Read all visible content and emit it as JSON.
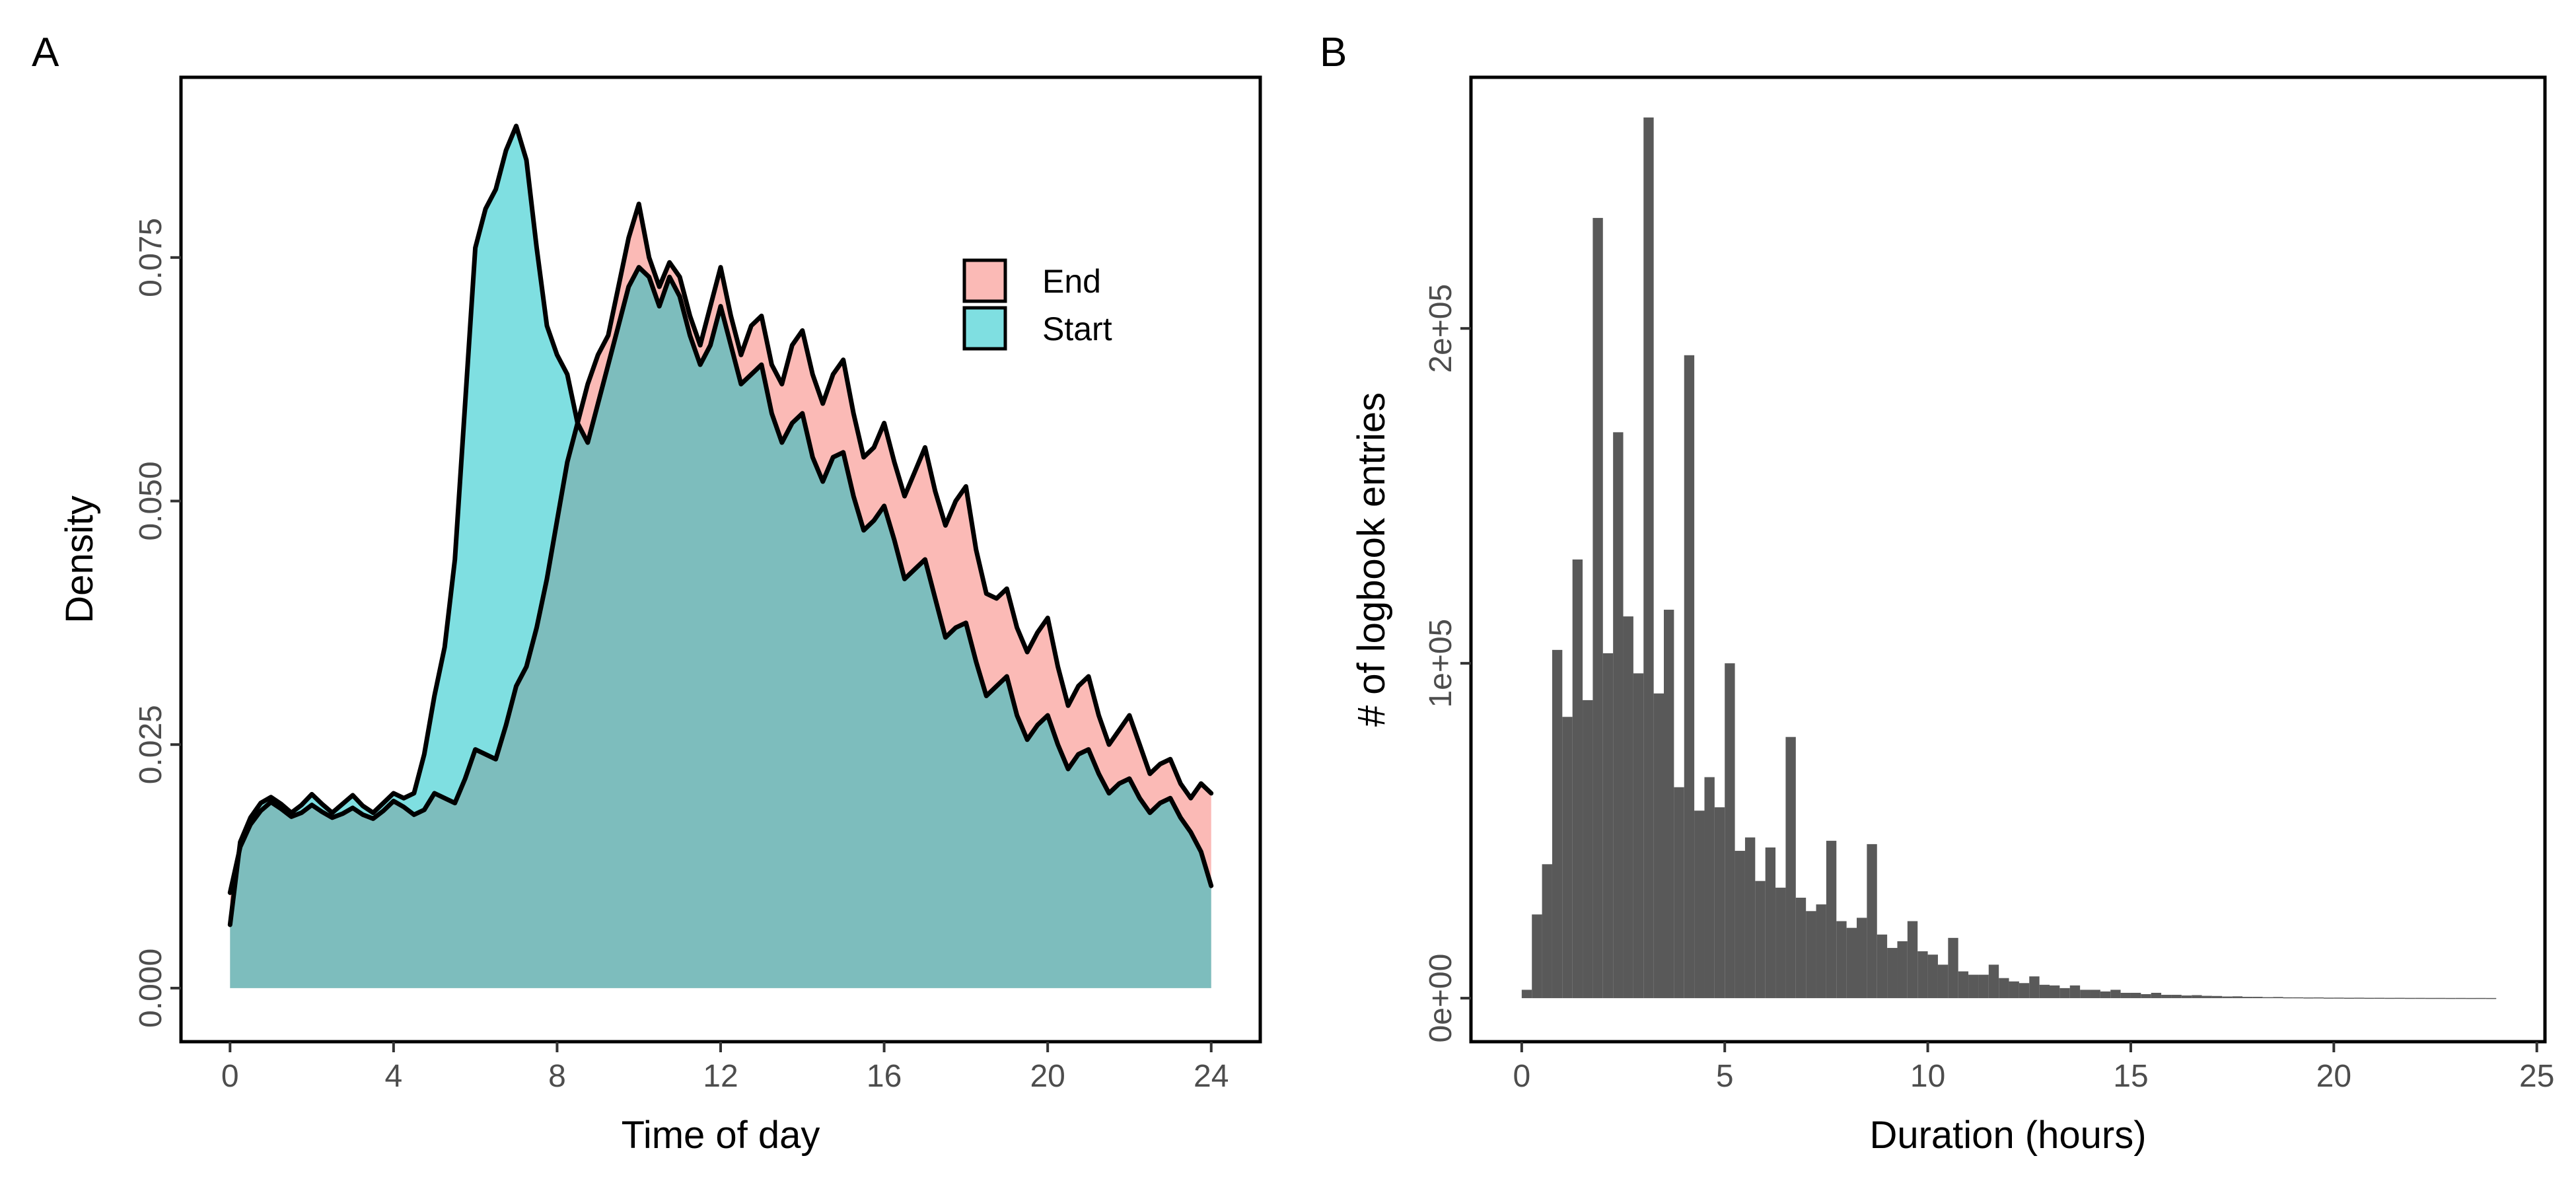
{
  "colors": {
    "end_fill": "#F8766D",
    "start_fill": "#00BFC4",
    "bar_fill": "#595959",
    "outline": "#000000"
  },
  "chart_data": [
    {
      "panel": "A",
      "type": "area",
      "xlabel": "Time of day",
      "ylabel": "Density",
      "xlim": [
        -1.2,
        25.2
      ],
      "ylim": [
        -0.0055,
        0.0935
      ],
      "x_ticks": [
        0,
        4,
        8,
        12,
        16,
        20,
        24
      ],
      "x_tick_labels": [
        "0",
        "4",
        "8",
        "12",
        "16",
        "20",
        "24"
      ],
      "y_ticks": [
        0.0,
        0.025,
        0.05,
        0.075
      ],
      "y_tick_labels": [
        "0.000",
        "0.025",
        "0.050",
        "0.075"
      ],
      "legend": {
        "placement": "top-right",
        "entries": [
          "End",
          "Start"
        ]
      },
      "series": [
        {
          "name": "End",
          "fill_alpha": 0.5,
          "x": [
            0,
            0.25,
            0.5,
            0.75,
            1,
            1.25,
            1.5,
            1.75,
            2,
            2.25,
            2.5,
            2.75,
            3,
            3.25,
            3.5,
            3.75,
            4,
            4.25,
            4.5,
            4.75,
            5,
            5.25,
            5.5,
            5.75,
            6,
            6.25,
            6.5,
            6.75,
            7,
            7.25,
            7.5,
            7.75,
            8,
            8.25,
            8.5,
            8.75,
            9,
            9.25,
            9.5,
            9.75,
            10,
            10.25,
            10.5,
            10.75,
            11,
            11.25,
            11.5,
            11.75,
            12,
            12.25,
            12.5,
            12.75,
            13,
            13.25,
            13.5,
            13.75,
            14,
            14.25,
            14.5,
            14.75,
            15,
            15.25,
            15.5,
            15.75,
            16,
            16.25,
            16.5,
            16.75,
            17,
            17.25,
            17.5,
            17.75,
            18,
            18.25,
            18.5,
            18.75,
            19,
            19.25,
            19.5,
            19.75,
            20,
            20.25,
            20.5,
            20.75,
            21,
            21.25,
            21.5,
            21.75,
            22,
            22.25,
            22.5,
            22.75,
            23,
            23.25,
            23.5,
            23.75,
            24
          ],
          "y": [
            0.0098,
            0.0145,
            0.0168,
            0.0182,
            0.0191,
            0.0184,
            0.0176,
            0.018,
            0.0188,
            0.0181,
            0.0175,
            0.0179,
            0.0185,
            0.0178,
            0.0174,
            0.0182,
            0.0192,
            0.0186,
            0.0178,
            0.0183,
            0.02,
            0.0195,
            0.019,
            0.0215,
            0.0245,
            0.024,
            0.0235,
            0.027,
            0.031,
            0.033,
            0.037,
            0.042,
            0.048,
            0.054,
            0.058,
            0.062,
            0.065,
            0.067,
            0.072,
            0.077,
            0.0805,
            0.075,
            0.072,
            0.0745,
            0.073,
            0.069,
            0.066,
            0.07,
            0.074,
            0.069,
            0.065,
            0.068,
            0.069,
            0.064,
            0.062,
            0.066,
            0.0675,
            0.063,
            0.06,
            0.063,
            0.0645,
            0.059,
            0.0545,
            0.0555,
            0.058,
            0.054,
            0.0505,
            0.053,
            0.0555,
            0.051,
            0.0475,
            0.05,
            0.0515,
            0.045,
            0.0405,
            0.04,
            0.041,
            0.037,
            0.0345,
            0.0365,
            0.038,
            0.033,
            0.029,
            0.031,
            0.032,
            0.028,
            0.025,
            0.0265,
            0.028,
            0.025,
            0.022,
            0.023,
            0.0235,
            0.021,
            0.0195,
            0.021,
            0.02
          ]
        },
        {
          "name": "Start",
          "fill_alpha": 0.5,
          "x": [
            0,
            0.25,
            0.5,
            0.75,
            1,
            1.25,
            1.5,
            1.75,
            2,
            2.25,
            2.5,
            2.75,
            3,
            3.25,
            3.5,
            3.75,
            4,
            4.25,
            4.5,
            4.75,
            5,
            5.25,
            5.5,
            5.75,
            6,
            6.25,
            6.5,
            6.75,
            7,
            7.25,
            7.5,
            7.75,
            8,
            8.25,
            8.5,
            8.75,
            9,
            9.25,
            9.5,
            9.75,
            10,
            10.25,
            10.5,
            10.75,
            11,
            11.25,
            11.5,
            11.75,
            12,
            12.25,
            12.5,
            12.75,
            13,
            13.25,
            13.5,
            13.75,
            14,
            14.25,
            14.5,
            14.75,
            15,
            15.25,
            15.5,
            15.75,
            16,
            16.25,
            16.5,
            16.75,
            17,
            17.25,
            17.5,
            17.75,
            18,
            18.25,
            18.5,
            18.75,
            19,
            19.25,
            19.5,
            19.75,
            20,
            20.25,
            20.5,
            20.75,
            21,
            21.25,
            21.5,
            21.75,
            22,
            22.25,
            22.5,
            22.75,
            23,
            23.25,
            23.5,
            23.75,
            24
          ],
          "y": [
            0.0065,
            0.015,
            0.0175,
            0.019,
            0.0196,
            0.0189,
            0.018,
            0.0188,
            0.0199,
            0.0189,
            0.018,
            0.0189,
            0.0198,
            0.0187,
            0.018,
            0.019,
            0.02,
            0.0195,
            0.02,
            0.024,
            0.03,
            0.035,
            0.044,
            0.06,
            0.076,
            0.08,
            0.082,
            0.086,
            0.0885,
            0.085,
            0.076,
            0.068,
            0.065,
            0.063,
            0.058,
            0.056,
            0.06,
            0.064,
            0.068,
            0.072,
            0.074,
            0.073,
            0.07,
            0.073,
            0.071,
            0.067,
            0.064,
            0.066,
            0.07,
            0.066,
            0.062,
            0.063,
            0.064,
            0.059,
            0.056,
            0.058,
            0.059,
            0.0545,
            0.052,
            0.0545,
            0.055,
            0.0505,
            0.047,
            0.048,
            0.0495,
            0.046,
            0.042,
            0.043,
            0.044,
            0.04,
            0.036,
            0.037,
            0.0375,
            0.0335,
            0.03,
            0.031,
            0.032,
            0.028,
            0.0255,
            0.027,
            0.028,
            0.025,
            0.0225,
            0.024,
            0.0245,
            0.022,
            0.02,
            0.021,
            0.0215,
            0.0195,
            0.018,
            0.019,
            0.0195,
            0.0175,
            0.016,
            0.014,
            0.0105
          ]
        }
      ]
    },
    {
      "panel": "B",
      "type": "bar",
      "xlabel": "Duration (hours)",
      "ylabel": "# of logbook entries",
      "xlim": [
        -1.25,
        25.2
      ],
      "ylim": [
        -13000,
        275000
      ],
      "bin_width": 0.25,
      "x_ticks": [
        0,
        5,
        10,
        15,
        20,
        25
      ],
      "x_tick_labels": [
        "0",
        "5",
        "10",
        "15",
        "20",
        "25"
      ],
      "y_ticks": [
        0,
        100000,
        200000
      ],
      "y_tick_labels": [
        "0e+00",
        "1e+05",
        "2e+05"
      ],
      "bin_starts": [
        0,
        0.25,
        0.5,
        0.75,
        1,
        1.25,
        1.5,
        1.75,
        2,
        2.25,
        2.5,
        2.75,
        3,
        3.25,
        3.5,
        3.75,
        4,
        4.25,
        4.5,
        4.75,
        5,
        5.25,
        5.5,
        5.75,
        6,
        6.25,
        6.5,
        6.75,
        7,
        7.25,
        7.5,
        7.75,
        8,
        8.25,
        8.5,
        8.75,
        9,
        9.25,
        9.5,
        9.75,
        10,
        10.25,
        10.5,
        10.75,
        11,
        11.25,
        11.5,
        11.75,
        12,
        12.25,
        12.5,
        12.75,
        13,
        13.25,
        13.5,
        13.75,
        14,
        14.25,
        14.5,
        14.75,
        15,
        15.25,
        15.5,
        15.75,
        16,
        16.25,
        16.5,
        16.75,
        17,
        17.25,
        17.5,
        17.75,
        18,
        18.25,
        18.5,
        18.75,
        19,
        19.25,
        19.5,
        19.75,
        20,
        20.25,
        20.5,
        20.75,
        21,
        21.25,
        21.5,
        21.75,
        22,
        22.25,
        22.5,
        22.75,
        23,
        23.25,
        23.5,
        23.75
      ],
      "values": [
        2500,
        25000,
        40000,
        104000,
        84000,
        131000,
        89000,
        233000,
        103000,
        169000,
        114000,
        97000,
        263000,
        91000,
        116000,
        63000,
        192000,
        56000,
        66000,
        57000,
        100000,
        44000,
        48000,
        35000,
        45000,
        33000,
        78000,
        30000,
        26000,
        28000,
        47000,
        23000,
        21000,
        24000,
        46000,
        19000,
        15000,
        17000,
        23000,
        14000,
        13000,
        10000,
        18000,
        8000,
        7000,
        7000,
        10000,
        6000,
        5000,
        4500,
        6500,
        4000,
        3800,
        3000,
        3800,
        2500,
        2500,
        2000,
        2500,
        1600,
        1600,
        1200,
        1600,
        1000,
        1000,
        800,
        900,
        700,
        650,
        500,
        550,
        400,
        400,
        300,
        350,
        250,
        250,
        200,
        220,
        150,
        160,
        120,
        140,
        100,
        110,
        90,
        100,
        80,
        85,
        70,
        75,
        60,
        65,
        55,
        60,
        50
      ]
    }
  ]
}
